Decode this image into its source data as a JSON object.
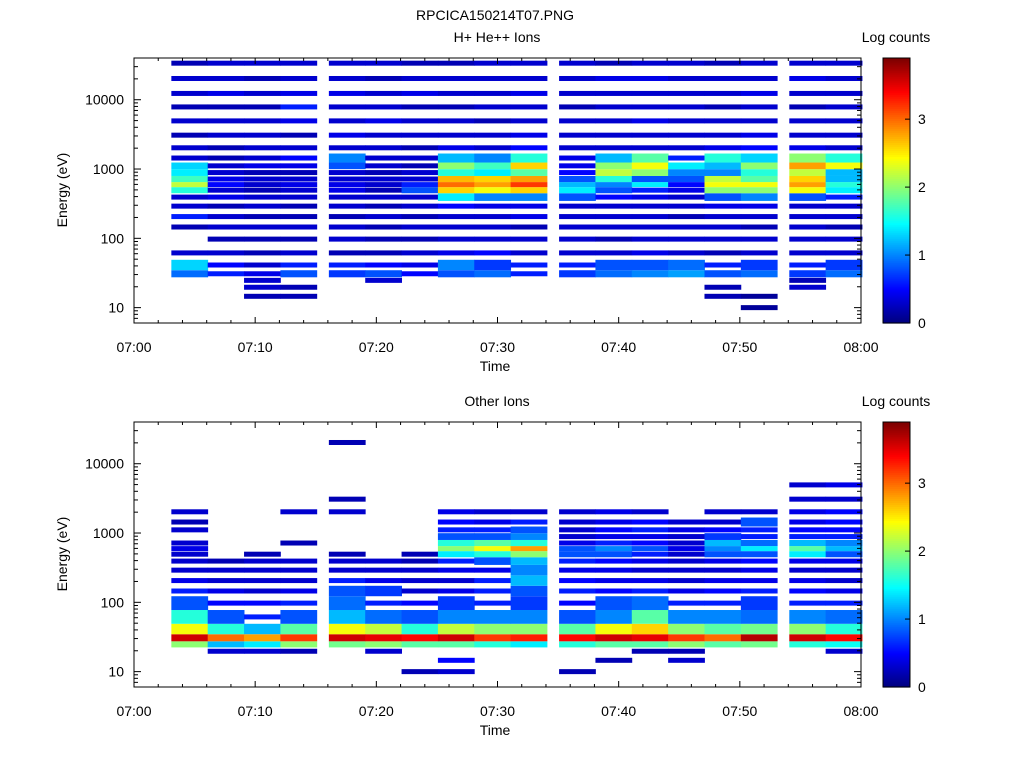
{
  "figure_title": "RPCICA150214T07.PNG",
  "panels": [
    {
      "title": "H+ He++ Ions",
      "xlabel": "Time",
      "ylabel": "Energy (eV)",
      "colorbar_label": "Log counts"
    },
    {
      "title": "Other Ions",
      "xlabel": "Time",
      "ylabel": "Energy (eV)",
      "colorbar_label": "Log counts"
    }
  ],
  "x_ticks": [
    "07:00",
    "07:10",
    "07:20",
    "07:30",
    "07:40",
    "07:50",
    "08:00"
  ],
  "y_ticks": [
    "10",
    "100",
    "1000",
    "10000"
  ],
  "colorbar_ticks": [
    "0",
    "1",
    "2",
    "3"
  ],
  "chart_data": [
    {
      "type": "heatmap",
      "title": "H+ He++ Ions",
      "xlabel": "Time",
      "ylabel": "Energy (eV)",
      "x_range": [
        "07:00",
        "08:00"
      ],
      "y_range_eV": [
        6,
        40000
      ],
      "y_scale": "log",
      "colorbar_range": [
        0,
        3.9
      ],
      "colormap": "jet",
      "time_bins": [
        "07:03",
        "07:06",
        "07:09",
        "07:12",
        "07:16",
        "07:19",
        "07:22",
        "07:25",
        "07:28",
        "07:31",
        "07:35",
        "07:38",
        "07:41",
        "07:44",
        "07:47",
        "07:50",
        "07:54",
        "07:57"
      ],
      "energy_bins_eV": [
        10,
        15,
        20,
        25,
        30,
        40,
        60,
        100,
        150,
        200,
        300,
        400,
        500,
        600,
        700,
        900,
        1100,
        1400,
        2000,
        3000,
        5000,
        8000,
        12000,
        20000,
        35000
      ],
      "values": [
        [
          0,
          0,
          0,
          0,
          0.9,
          1.3,
          0.3,
          0,
          0.2,
          0.6,
          0.3,
          0.3,
          1.6,
          2.2,
          1.7,
          1.4,
          1.3,
          0.3,
          0.3,
          0.2,
          0.3,
          0.2,
          0.3,
          0.3,
          0.2
        ],
        [
          0,
          0,
          0,
          0,
          0.6,
          0.5,
          0.3,
          0.2,
          0.3,
          0.3,
          0.2,
          0.4,
          0.3,
          0.5,
          0.4,
          0.3,
          0.3,
          0.2,
          0.2,
          0.3,
          0.3,
          0.2,
          0.4,
          0.3,
          0.3
        ],
        [
          0,
          0.2,
          0.3,
          0.3,
          0.4,
          0.3,
          0.2,
          0.2,
          0.3,
          0.2,
          0.3,
          0.3,
          0.2,
          0.3,
          0.3,
          0.2,
          0.4,
          0.3,
          0.3,
          0.3,
          0.3,
          0.2,
          0.3,
          0.2,
          0.3
        ],
        [
          0,
          0.2,
          0.2,
          0,
          0.8,
          0.6,
          0.3,
          0.2,
          0.3,
          0.2,
          0.2,
          0.3,
          0.3,
          0.4,
          0.3,
          0.2,
          0.4,
          0.5,
          0.3,
          0.2,
          0.4,
          0.6,
          0.4,
          0.3,
          0.3
        ],
        [
          0,
          0,
          0,
          0,
          0.7,
          0.6,
          0.2,
          0.3,
          0.3,
          0.2,
          0.3,
          0.3,
          0.4,
          0.4,
          0.3,
          0.3,
          0.8,
          1.0,
          0.3,
          0.4,
          0.3,
          0.3,
          0.4,
          0.3,
          0.3
        ],
        [
          0,
          0,
          0,
          0.3,
          0.8,
          0.5,
          0.2,
          0.2,
          0.2,
          0.3,
          0.2,
          0.3,
          0.2,
          0.3,
          0.3,
          0.2,
          0.3,
          0.3,
          0.3,
          0.3,
          0.4,
          0.3,
          0.3,
          0.2,
          0.3
        ],
        [
          0,
          0,
          0,
          0,
          0.5,
          0.4,
          0.3,
          0.2,
          0.3,
          0.2,
          0.3,
          0.3,
          0.8,
          0.6,
          0.3,
          0.3,
          0.2,
          0.3,
          0.2,
          0.3,
          0.3,
          0.2,
          0.4,
          0.3,
          0.2
        ],
        [
          0,
          0,
          0,
          0,
          0.8,
          1.0,
          0.4,
          0.3,
          0.3,
          0.3,
          0.5,
          1.4,
          2.6,
          3.0,
          2.7,
          1.6,
          2.0,
          1.2,
          0.4,
          0.3,
          0.3,
          0.2,
          0.3,
          0.3,
          0.2
        ],
        [
          0,
          0,
          0,
          0,
          0.9,
          0.7,
          0.5,
          0.3,
          0.3,
          0.3,
          0.4,
          1.0,
          2.4,
          2.8,
          2.6,
          1.4,
          1.7,
          1.0,
          0.3,
          0.3,
          0.2,
          0.3,
          0.3,
          0.3,
          0.3
        ],
        [
          0,
          0,
          0,
          0,
          0.6,
          0.6,
          0.3,
          0.3,
          0.2,
          0.4,
          0.4,
          1.0,
          2.6,
          3.2,
          2.8,
          1.8,
          2.6,
          1.6,
          0.5,
          0.4,
          0.3,
          0.3,
          0.4,
          0.3,
          0.3
        ],
        [
          0,
          0,
          0,
          0,
          0.7,
          0.6,
          0.3,
          0.3,
          0.3,
          0.3,
          0.3,
          0.8,
          1.4,
          1.2,
          0.8,
          0.5,
          0.4,
          0.4,
          0.3,
          0.3,
          0.3,
          0.2,
          0.3,
          0.3,
          0.3
        ],
        [
          0,
          0,
          0,
          0,
          0.9,
          0.8,
          0.3,
          0.2,
          0.3,
          0.3,
          0.3,
          0.5,
          0.8,
          1.0,
          1.6,
          2.2,
          2.0,
          1.2,
          0.3,
          0.3,
          0.3,
          0.3,
          0.3,
          0.4,
          0.2
        ],
        [
          0,
          0,
          0,
          0,
          1.0,
          0.8,
          0.4,
          0.3,
          0.3,
          0.3,
          0.3,
          0.4,
          0.6,
          1.4,
          0.8,
          2.0,
          2.4,
          1.8,
          0.3,
          0.3,
          0.4,
          0.3,
          0.3,
          0.4,
          0.3
        ],
        [
          0,
          0,
          0,
          0,
          1.1,
          0.9,
          0.3,
          0.3,
          0.3,
          0.2,
          0.3,
          0.3,
          0.4,
          0.5,
          0.8,
          1.0,
          1.4,
          0.6,
          0.3,
          0.3,
          0.3,
          0.3,
          0.3,
          0.3,
          0.3
        ],
        [
          0,
          0.2,
          0.2,
          0,
          0.8,
          0.6,
          0.2,
          0.3,
          0.3,
          0.3,
          0.4,
          0.8,
          2.0,
          2.4,
          2.2,
          1.0,
          1.2,
          1.6,
          0.4,
          0.3,
          0.3,
          0.2,
          0.3,
          0.3,
          0.2
        ],
        [
          0.1,
          0.1,
          0,
          0,
          0.9,
          0.7,
          0.3,
          0.3,
          0.2,
          0.3,
          0.4,
          1.0,
          2.0,
          2.4,
          1.8,
          1.6,
          2.0,
          1.3,
          0.5,
          0.4,
          0.3,
          0.3,
          0.4,
          0.3,
          0.3
        ],
        [
          0,
          0,
          0.3,
          0.2,
          0.7,
          0.6,
          0.3,
          0.3,
          0.3,
          0.3,
          0.3,
          0.8,
          2.4,
          2.8,
          2.6,
          2.2,
          2.8,
          2.0,
          0.4,
          0.3,
          0.3,
          0.2,
          0.3,
          0.4,
          0.3
        ],
        [
          0,
          0,
          0,
          0,
          0.9,
          0.7,
          0.3,
          0.3,
          0.2,
          0.3,
          0.3,
          0.6,
          1.4,
          1.6,
          1.2,
          1.2,
          2.4,
          1.6,
          0.3,
          0.3,
          0.3,
          0.3,
          0.3,
          0.3,
          0.3
        ]
      ]
    },
    {
      "type": "heatmap",
      "title": "Other Ions",
      "xlabel": "Time",
      "ylabel": "Energy (eV)",
      "x_range": [
        "07:00",
        "08:00"
      ],
      "y_range_eV": [
        6,
        40000
      ],
      "y_scale": "log",
      "colorbar_range": [
        0,
        3.9
      ],
      "colormap": "jet",
      "time_bins": [
        "07:03",
        "07:06",
        "07:09",
        "07:12",
        "07:16",
        "07:19",
        "07:22",
        "07:25",
        "07:28",
        "07:31",
        "07:35",
        "07:38",
        "07:41",
        "07:44",
        "07:47",
        "07:50",
        "07:54",
        "07:57"
      ],
      "energy_bins_eV": [
        10,
        15,
        20,
        25,
        30,
        40,
        60,
        100,
        150,
        200,
        300,
        400,
        500,
        600,
        700,
        900,
        1100,
        1400,
        2000,
        3000,
        5000,
        8000,
        12000,
        20000,
        35000
      ],
      "values": [
        [
          0,
          0,
          0,
          2.0,
          3.6,
          2.4,
          1.6,
          0.8,
          0.6,
          0.4,
          0.3,
          0.3,
          0.3,
          0.4,
          0.3,
          0,
          0.3,
          0.2,
          0.3,
          0,
          0,
          0,
          0,
          0,
          0
        ],
        [
          0,
          0,
          0.3,
          1.2,
          3.0,
          1.6,
          0.8,
          0.5,
          0.4,
          0.3,
          0.3,
          0.2,
          0,
          0,
          0,
          0,
          0,
          0,
          0,
          0,
          0,
          0,
          0,
          0,
          0
        ],
        [
          0,
          0,
          0.3,
          1.4,
          2.8,
          1.2,
          0.6,
          0.5,
          0.3,
          0.3,
          0.3,
          0.3,
          0.2,
          0,
          0,
          0,
          0,
          0,
          0,
          0,
          0,
          0,
          0,
          0,
          0
        ],
        [
          0,
          0,
          0.2,
          2.0,
          3.2,
          1.8,
          0.8,
          0.6,
          0.4,
          0.3,
          0.3,
          0.3,
          0,
          0,
          0.2,
          0,
          0,
          0,
          0.3,
          0,
          0,
          0,
          0,
          0,
          0
        ],
        [
          0,
          0,
          0,
          1.9,
          3.6,
          2.4,
          1.2,
          0.9,
          0.8,
          0.6,
          0.3,
          0.3,
          0.2,
          0,
          0,
          0,
          0,
          0,
          0.3,
          0.2,
          0,
          0,
          0,
          0.2,
          0
        ],
        [
          0,
          0,
          0.3,
          2.0,
          3.5,
          2.2,
          0.9,
          0.6,
          0.7,
          0.4,
          0.3,
          0.3,
          0,
          0,
          0,
          0,
          0,
          0,
          0,
          0,
          0,
          0,
          0,
          0,
          0
        ],
        [
          0.2,
          0,
          0,
          1.8,
          3.4,
          1.6,
          0.8,
          0.5,
          0.3,
          0.3,
          0.3,
          0.2,
          0.2,
          0,
          0,
          0,
          0,
          0,
          0,
          0,
          0,
          0,
          0,
          0,
          0
        ],
        [
          0.3,
          0.5,
          0,
          1.8,
          3.6,
          2.2,
          1.0,
          0.7,
          0.4,
          0.3,
          0.4,
          0.6,
          1.4,
          2.0,
          1.6,
          0.8,
          0.6,
          0.5,
          0.4,
          0,
          0,
          0,
          0,
          0,
          0
        ],
        [
          0,
          0,
          0,
          1.6,
          3.2,
          2.0,
          1.0,
          0.6,
          0.6,
          0.6,
          0.4,
          0.8,
          1.6,
          2.4,
          1.8,
          0.8,
          0.6,
          0.4,
          0.3,
          0,
          0,
          0,
          0,
          0,
          0
        ],
        [
          0,
          0,
          0,
          1.4,
          3.3,
          2.0,
          1.0,
          0.7,
          0.8,
          1.2,
          1.0,
          1.2,
          2.0,
          2.8,
          1.6,
          1.0,
          0.8,
          0.6,
          0.3,
          0,
          0,
          0,
          0,
          0,
          0
        ],
        [
          0.2,
          0,
          0,
          1.6,
          3.4,
          1.8,
          0.8,
          0.5,
          0.6,
          0.5,
          0.4,
          0.6,
          0.8,
          0.8,
          0.4,
          0.3,
          0.3,
          0.3,
          0.3,
          0,
          0,
          0,
          0,
          0,
          0
        ],
        [
          0,
          0.2,
          0,
          1.8,
          3.6,
          2.4,
          1.0,
          0.8,
          0.5,
          0.4,
          0.4,
          0.5,
          0.8,
          1.0,
          0.6,
          0.4,
          0.5,
          0.4,
          0.4,
          0,
          0,
          0,
          0,
          0,
          0
        ],
        [
          0,
          0,
          0.2,
          1.8,
          3.5,
          2.6,
          1.8,
          0.9,
          0.6,
          0.4,
          0.3,
          0.4,
          0.6,
          0.8,
          0.5,
          0.4,
          0.6,
          0.5,
          0.3,
          0,
          0,
          0,
          0,
          0,
          0
        ],
        [
          0,
          0.3,
          0.2,
          2.0,
          3.2,
          2.0,
          1.0,
          0.6,
          0.4,
          0.3,
          0.3,
          0.3,
          0.3,
          0.4,
          0.3,
          0.3,
          0.4,
          0.3,
          0,
          0,
          0,
          0,
          0,
          0,
          0
        ],
        [
          0,
          0,
          0,
          1.8,
          3.0,
          1.8,
          1.0,
          0.6,
          0.5,
          0.4,
          0.3,
          0.4,
          0.8,
          1.0,
          1.2,
          0.7,
          0.5,
          0.3,
          0.3,
          0,
          0,
          0,
          0,
          0,
          0
        ],
        [
          0,
          0,
          0,
          1.9,
          3.7,
          1.9,
          0.9,
          0.7,
          0.6,
          0.4,
          0.4,
          0.5,
          0.8,
          1.4,
          0.9,
          0.6,
          0.6,
          0.8,
          0.3,
          0,
          0,
          0,
          0,
          0,
          0
        ],
        [
          0,
          0,
          0,
          1.6,
          3.6,
          2.0,
          1.0,
          0.6,
          0.5,
          0.4,
          0.3,
          0.4,
          1.4,
          1.8,
          1.2,
          0.6,
          0.5,
          0.4,
          0.4,
          0.3,
          0.3,
          0,
          0,
          0,
          0
        ],
        [
          0,
          0,
          0.3,
          1.5,
          3.4,
          1.6,
          0.9,
          0.6,
          0.4,
          0.3,
          0.3,
          0.4,
          0.8,
          1.2,
          1.0,
          0.6,
          0.5,
          0.5,
          0.5,
          0.3,
          0.4,
          0,
          0,
          0,
          0
        ]
      ]
    }
  ]
}
